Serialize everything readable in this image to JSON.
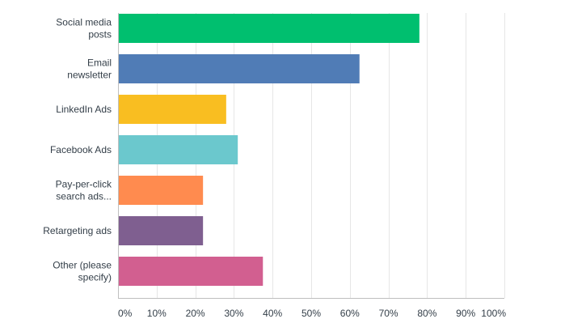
{
  "chart_data": {
    "type": "bar",
    "orientation": "horizontal",
    "categories": [
      [
        "Social media",
        "posts"
      ],
      [
        "Email",
        "newsletter"
      ],
      [
        "LinkedIn Ads"
      ],
      [
        "Facebook Ads"
      ],
      [
        "Pay-per-click",
        "search ads..."
      ],
      [
        "Retargeting ads"
      ],
      [
        "Other (please",
        "specify)"
      ]
    ],
    "values": [
      78,
      62.5,
      28,
      31,
      22,
      22,
      37.5
    ],
    "colors": [
      "#00bf6f",
      "#507cb6",
      "#f9be21",
      "#6bc8cd",
      "#ff8b4f",
      "#7f5f90",
      "#d25f90"
    ],
    "xlim": [
      0,
      100
    ],
    "ticks": [
      0,
      10,
      20,
      30,
      40,
      50,
      60,
      70,
      80,
      90,
      100
    ],
    "tick_labels": [
      "0%",
      "10%",
      "20%",
      "30%",
      "40%",
      "50%",
      "60%",
      "70%",
      "80%",
      "90%",
      "100%"
    ],
    "grid": true,
    "title": "",
    "xlabel": "",
    "ylabel": ""
  }
}
